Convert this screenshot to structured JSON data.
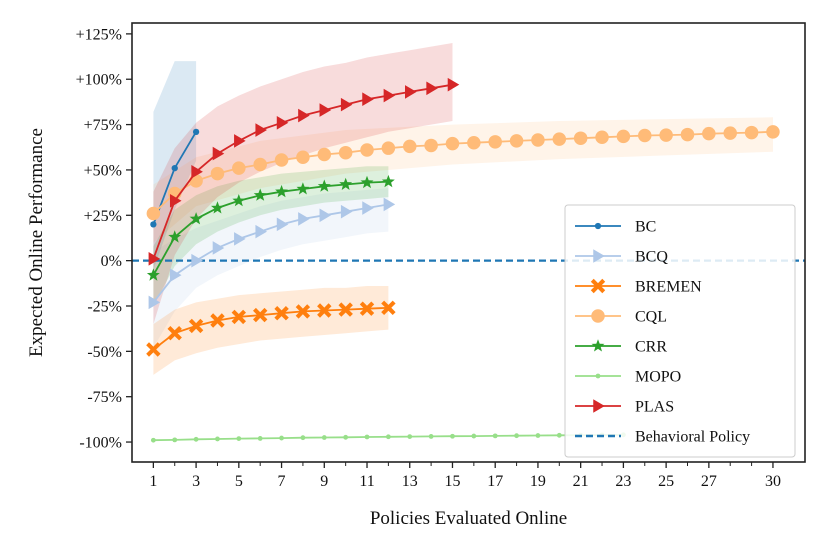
{
  "chart_data": {
    "type": "line",
    "xlabel": "Policies Evaluated Online",
    "ylabel": "Expected Online Performance",
    "xlim": [
      0,
      31.5
    ],
    "ylim": [
      -111,
      131
    ],
    "grid": false,
    "legend_position": "center-right",
    "x_ticks": [
      1,
      3,
      5,
      7,
      9,
      11,
      13,
      15,
      17,
      19,
      21,
      23,
      25,
      27,
      30
    ],
    "y_ticks": [
      125,
      100,
      75,
      50,
      25,
      0,
      -25,
      -50,
      -75,
      -100
    ],
    "y_tick_labels": [
      "+125%",
      "+100%",
      "+75%",
      "+50%",
      "+25%",
      "0%",
      "-25%",
      "-50%",
      "-75%",
      "-100%"
    ],
    "baseline": {
      "name": "Behavioral Policy",
      "value": 0,
      "color": "#1f77b4"
    },
    "series": [
      {
        "name": "BC",
        "color": "#1f77b4",
        "marker": "point",
        "x": [
          1,
          2,
          3
        ],
        "values": [
          20,
          51,
          71
        ],
        "band": {
          "x": [
            1,
            2,
            3
          ],
          "lower": [
            -5,
            28,
            55
          ],
          "upper": [
            82,
            110,
            110
          ]
        }
      },
      {
        "name": "BCQ",
        "color": "#aec7e8",
        "marker": "triangle",
        "x": [
          1,
          2,
          3,
          4,
          5,
          6,
          7,
          8,
          9,
          10,
          11,
          12
        ],
        "values": [
          -23,
          -8,
          0,
          7,
          12,
          16,
          20,
          23,
          25,
          27,
          29,
          31
        ],
        "band": {
          "x": [
            1,
            2,
            3,
            4,
            5,
            6,
            7,
            8,
            9,
            10,
            11,
            12
          ],
          "lower": [
            -48,
            -28,
            -15,
            -8,
            -3,
            2,
            6,
            9,
            11,
            13,
            15,
            16
          ],
          "upper": [
            5,
            12,
            18,
            22,
            26,
            30,
            33,
            35,
            37,
            38,
            39,
            40
          ]
        }
      },
      {
        "name": "BREMEN",
        "color": "#ff7f0e",
        "marker": "x",
        "x": [
          1,
          2,
          3,
          4,
          5,
          6,
          7,
          8,
          9,
          10,
          11,
          12
        ],
        "values": [
          -49,
          -40,
          -36,
          -33,
          -31,
          -30,
          -29,
          -28,
          -27.5,
          -27,
          -26.5,
          -26
        ],
        "band": {
          "x": [
            1,
            2,
            3,
            4,
            5,
            6,
            7,
            8,
            9,
            10,
            11,
            12
          ],
          "lower": [
            -63,
            -55,
            -51,
            -48,
            -46,
            -44,
            -43,
            -42,
            -41,
            -40,
            -39,
            -38
          ],
          "upper": [
            -35,
            -27,
            -23,
            -21,
            -19,
            -18,
            -17,
            -16,
            -15,
            -15,
            -14,
            -14
          ]
        }
      },
      {
        "name": "CQL",
        "color": "#ffbb78",
        "marker": "circle",
        "x": [
          1,
          2,
          3,
          4,
          5,
          6,
          7,
          8,
          9,
          10,
          11,
          12,
          13,
          14,
          15,
          16,
          17,
          18,
          19,
          20,
          21,
          22,
          23,
          24,
          25,
          26,
          27,
          28,
          29,
          30
        ],
        "values": [
          26,
          37,
          44,
          48,
          51,
          53,
          55.5,
          57,
          58.5,
          59.5,
          61,
          62,
          63,
          63.5,
          64.5,
          65,
          65.5,
          66,
          66.5,
          67,
          67.5,
          68,
          68.5,
          69,
          69.2,
          69.5,
          70,
          70.3,
          70.6,
          71
        ],
        "band": {
          "x": [
            1,
            3,
            6,
            10,
            15,
            20,
            25,
            30
          ],
          "lower": [
            10,
            30,
            40,
            48,
            53,
            56,
            58,
            60
          ],
          "upper": [
            42,
            57,
            66,
            72,
            75,
            77,
            78,
            79
          ]
        }
      },
      {
        "name": "CRR",
        "color": "#2ca02c",
        "marker": "star",
        "x": [
          1,
          2,
          3,
          4,
          5,
          6,
          7,
          8,
          9,
          10,
          11,
          12
        ],
        "values": [
          -8,
          13,
          23,
          29,
          33,
          36,
          38,
          39.5,
          41,
          42,
          43,
          43.5
        ],
        "band": {
          "x": [
            1,
            2,
            3,
            4,
            5,
            6,
            7,
            8,
            9,
            10,
            11,
            12
          ],
          "lower": [
            -25,
            -3,
            9,
            16,
            21,
            25,
            28,
            30,
            32,
            33,
            34,
            35
          ],
          "upper": [
            8,
            28,
            36,
            41,
            44,
            46,
            48,
            49,
            50,
            51,
            52,
            52
          ]
        }
      },
      {
        "name": "MOPO",
        "color": "#98df8a",
        "marker": "dot",
        "x": [
          1,
          2,
          3,
          4,
          5,
          6,
          7,
          8,
          9,
          10,
          11,
          12,
          13,
          14,
          15,
          16,
          17,
          18,
          19,
          20,
          21,
          22,
          23
        ],
        "values": [
          -99,
          -98.8,
          -98.5,
          -98.3,
          -98.1,
          -98,
          -97.8,
          -97.6,
          -97.5,
          -97.4,
          -97.2,
          -97.1,
          -97,
          -96.9,
          -96.8,
          -96.7,
          -96.6,
          -96.5,
          -96.4,
          -96.3,
          -96.2,
          -96.1,
          -96
        ],
        "band": null
      },
      {
        "name": "PLAS",
        "color": "#d62728",
        "marker": "triangle",
        "x": [
          1,
          2,
          3,
          4,
          5,
          6,
          7,
          8,
          9,
          10,
          11,
          12,
          13,
          14,
          15
        ],
        "values": [
          1,
          33,
          49,
          59,
          66,
          72,
          76,
          80,
          83,
          86,
          89,
          91,
          93,
          95,
          97
        ],
        "band": {
          "x": [
            1,
            2,
            3,
            4,
            5,
            6,
            7,
            8,
            9,
            10,
            11,
            12,
            13,
            14,
            15
          ],
          "lower": [
            -35,
            3,
            23,
            35,
            43,
            49,
            54,
            58,
            62,
            65,
            68,
            71,
            73,
            75,
            77
          ],
          "upper": [
            38,
            62,
            76,
            85,
            91,
            96,
            100,
            104,
            107,
            109,
            112,
            114,
            116,
            118,
            120
          ]
        }
      }
    ]
  }
}
